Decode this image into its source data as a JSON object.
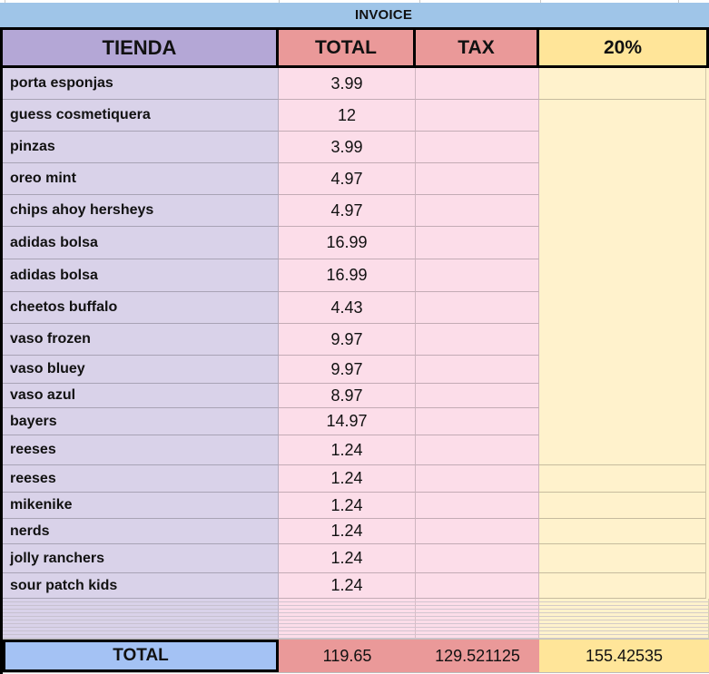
{
  "title": "INVOICE",
  "header": {
    "tienda": "TIENDA",
    "total": "TOTAL",
    "tax": "TAX",
    "pct": "20%"
  },
  "items": [
    {
      "name": "porta esponjas",
      "total": "3.99"
    },
    {
      "name": "guess cosmetiquera",
      "total": "12"
    },
    {
      "name": "pinzas",
      "total": "3.99"
    },
    {
      "name": "oreo mint",
      "total": "4.97"
    },
    {
      "name": "chips ahoy hersheys",
      "total": "4.97"
    },
    {
      "name": "adidas bolsa",
      "total": "16.99"
    },
    {
      "name": "adidas bolsa",
      "total": "16.99"
    },
    {
      "name": "cheetos buffalo",
      "total": "4.43"
    },
    {
      "name": "vaso frozen",
      "total": "9.97"
    },
    {
      "name": "vaso bluey",
      "total": "9.97"
    },
    {
      "name": "vaso azul",
      "total": "8.97"
    },
    {
      "name": "bayers",
      "total": "14.97"
    },
    {
      "name": "reeses",
      "total": "1.24"
    },
    {
      "name": "reeses",
      "total": "1.24"
    },
    {
      "name": "mikenike",
      "total": "1.24"
    },
    {
      "name": "nerds",
      "total": "1.24"
    },
    {
      "name": "jolly ranchers",
      "total": "1.24"
    },
    {
      "name": "sour patch kids",
      "total": "1.24"
    }
  ],
  "footer": {
    "label": "TOTAL",
    "total": "119.65",
    "tax": "129.521125",
    "pct": "155.42535"
  },
  "colors": {
    "banner_blue": "#9fc5e8",
    "footer_blue": "#a4c2f4",
    "header_purple": "#b4a7d6",
    "header_salmon": "#ea9999",
    "header_yellow": "#ffe599",
    "row_lavender": "#d9d2e9",
    "row_pink": "#fcdde9",
    "row_yellow": "#fff2cc"
  }
}
